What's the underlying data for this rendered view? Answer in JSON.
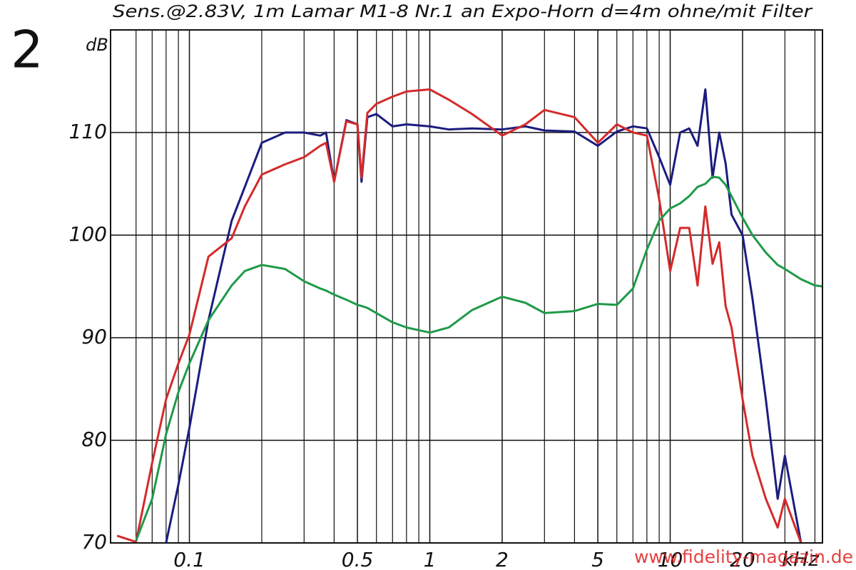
{
  "chart_data": {
    "type": "line",
    "figure_label": "2",
    "title": "Sens.@2.83V, 1m Lamar M1-8 Nr.1 an Expo-Horn d=4m ohne/mit Filter",
    "y_label": "dB",
    "x_label": "kHz",
    "watermark": "www.fidelity-magazin.de",
    "log_x": true,
    "grid": true,
    "xlim": [
      0.047,
      43
    ],
    "ylim": [
      70,
      120
    ],
    "xticks": [
      0.1,
      0.5,
      1,
      2,
      5,
      10,
      20
    ],
    "xgrid": [
      0.06,
      0.07,
      0.08,
      0.09,
      0.2,
      0.3,
      0.4,
      0.6,
      0.7,
      0.8,
      0.9,
      3,
      4,
      6,
      7,
      8,
      9,
      30,
      40
    ],
    "yticks": [
      70,
      80,
      90,
      100,
      110
    ],
    "x": [
      0.05,
      0.06,
      0.07,
      0.08,
      0.09,
      0.1,
      0.12,
      0.15,
      0.17,
      0.2,
      0.25,
      0.3,
      0.35,
      0.37,
      0.4,
      0.45,
      0.5,
      0.52,
      0.55,
      0.6,
      0.7,
      0.8,
      1,
      1.2,
      1.5,
      2,
      2.5,
      3,
      4,
      5,
      6,
      7,
      8,
      9,
      10,
      11,
      12,
      13,
      14,
      15,
      16,
      17,
      18,
      20,
      22,
      25,
      28,
      30,
      35,
      40,
      43
    ],
    "series": [
      {
        "color": "#1c1c80",
        "values": [
          null,
          null,
          null,
          70,
          75.7,
          81.2,
          91.7,
          101.4,
          104.7,
          109,
          110,
          110,
          109.7,
          110,
          105.2,
          111.2,
          110.8,
          105.2,
          111.5,
          111.8,
          110.6,
          110.8,
          110.6,
          110.3,
          110.4,
          110.3,
          110.6,
          110.2,
          110.1,
          108.7,
          110.1,
          110.6,
          110.4,
          107.6,
          104.9,
          110,
          110.4,
          108.7,
          114.2,
          105.6,
          110,
          107,
          102,
          100,
          93.8,
          84,
          74.3,
          78.5,
          70,
          null,
          null
        ]
      },
      {
        "color": "#d42a2a",
        "values": [
          70.7,
          70.1,
          77.8,
          84,
          87.5,
          90.3,
          97.9,
          99.7,
          102.8,
          105.9,
          106.9,
          107.6,
          108.7,
          109,
          105.2,
          111.1,
          110.8,
          105.6,
          111.9,
          112.8,
          113.5,
          114,
          114.2,
          113.2,
          111.8,
          109.7,
          110.8,
          112.2,
          111.5,
          109,
          110.8,
          110,
          109.7,
          103.5,
          96.5,
          100.7,
          100.7,
          95.1,
          102.8,
          97.2,
          99.3,
          93.1,
          91,
          84,
          78.5,
          74.3,
          71.5,
          74.3,
          70,
          null,
          null
        ]
      },
      {
        "color": "#1e9a48",
        "values": [
          null,
          70.2,
          74.3,
          80.6,
          84.7,
          87.5,
          91.7,
          95.1,
          96.5,
          97.1,
          96.7,
          95.5,
          94.8,
          94.6,
          94.2,
          93.7,
          93.2,
          93.1,
          92.9,
          92.4,
          91.5,
          91,
          90.5,
          91,
          92.7,
          94,
          93.4,
          92.4,
          92.6,
          93.3,
          93.2,
          94.8,
          98.6,
          101.4,
          102.6,
          103.1,
          103.8,
          104.7,
          105,
          105.7,
          105.6,
          104.9,
          103.8,
          101.7,
          100,
          98.3,
          97.1,
          96.7,
          95.7,
          95.1,
          95
        ]
      }
    ]
  }
}
